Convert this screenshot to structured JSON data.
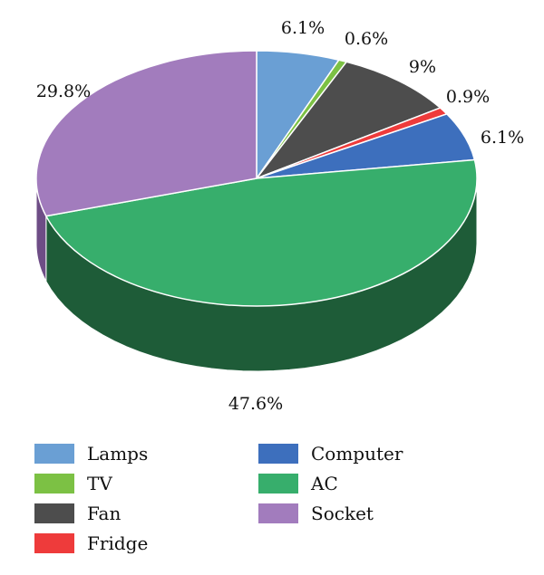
{
  "chart_data": {
    "type": "pie",
    "style": "3d",
    "slices": [
      {
        "name": "Lamps",
        "value": 6.1,
        "label": "6.1%",
        "color": "#6a9fd4",
        "dark": "#3f6c9c"
      },
      {
        "name": "TV",
        "value": 0.6,
        "label": "0.6%",
        "color": "#7cc144",
        "dark": "#4a7f22"
      },
      {
        "name": "Fan",
        "value": 9,
        "label": "9%",
        "color": "#4d4d4d",
        "dark": "#2a2a2a"
      },
      {
        "name": "Fridge",
        "value": 0.9,
        "label": "0.9%",
        "color": "#ee3b3b",
        "dark": "#a51f1f"
      },
      {
        "name": "Computer",
        "value": 6.1,
        "label": "6.1%",
        "color": "#3d6fbd",
        "dark": "#26467c"
      },
      {
        "name": "AC",
        "value": 47.6,
        "label": "47.6%",
        "color": "#37ae6c",
        "dark": "#1e5c38"
      },
      {
        "name": "Socket",
        "value": 29.8,
        "label": "29.8%",
        "color": "#a27cbd",
        "dark": "#6e4d86"
      }
    ],
    "legend_position": "bottom",
    "legend_order": [
      "Lamps",
      "TV",
      "Fan",
      "Fridge",
      "Computer",
      "AC",
      "Socket"
    ]
  }
}
